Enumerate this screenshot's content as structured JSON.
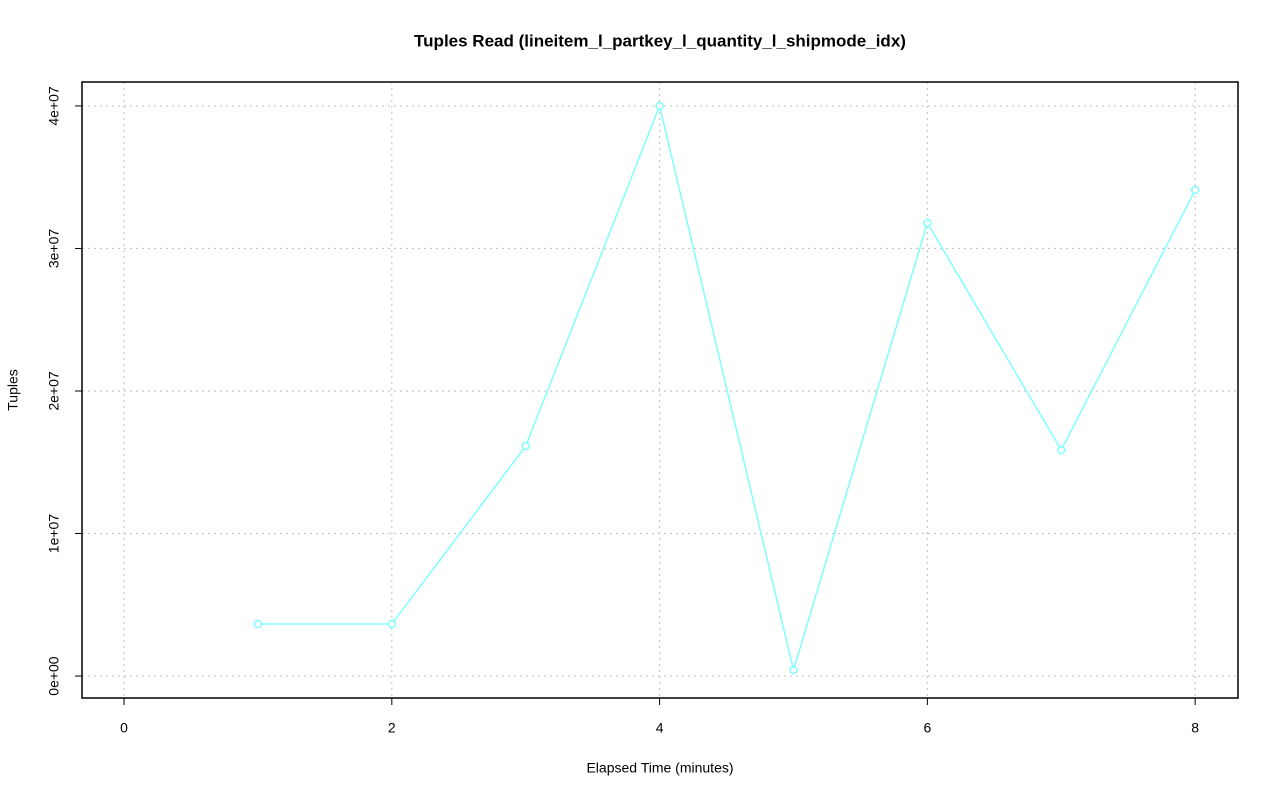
{
  "chart_data": {
    "type": "line",
    "title": "Tuples Read (lineitem_l_partkey_l_quantity_l_shipmode_idx)",
    "x_label": "Elapsed Time (minutes)",
    "y_label": "Tuples",
    "series": [
      {
        "color": "#7fffff",
        "x": [
          1,
          2,
          3,
          4,
          5,
          6,
          7,
          8
        ],
        "values": [
          3650000,
          3650000,
          16140000,
          40000000,
          420000,
          31790000,
          15860000,
          34100000
        ]
      }
    ],
    "xlim": [
      -0.314,
      8.32
    ],
    "ylim": [
      -1540000,
      41680000
    ],
    "xticks": [
      0,
      2,
      4,
      6,
      8
    ],
    "yticks": [
      {
        "value": 0,
        "label": "0e+00"
      },
      {
        "value": 10000000,
        "label": "1e+07"
      },
      {
        "value": 20000000,
        "label": "2e+07"
      },
      {
        "value": 30000000,
        "label": "3e+07"
      },
      {
        "value": 40000000,
        "label": "4e+07"
      }
    ],
    "grid": true
  }
}
